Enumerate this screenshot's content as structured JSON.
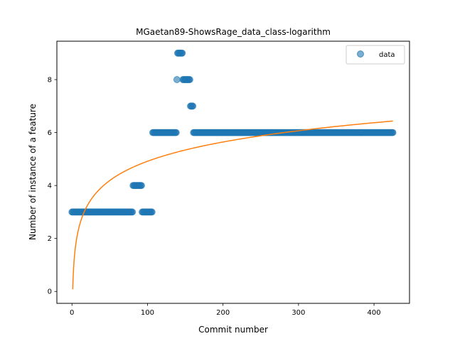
{
  "chart_data": {
    "type": "scatter",
    "title": "MGaetan89-ShowsRage_data_class-logarithm",
    "xlabel": "Commit number",
    "ylabel": "Number of instance of a feature",
    "xlim": [
      -20,
      447
    ],
    "ylim": [
      -0.45,
      9.45
    ],
    "xticks": [
      0,
      100,
      200,
      300,
      400
    ],
    "yticks": [
      0,
      2,
      4,
      6,
      8
    ],
    "grid": false,
    "legend": {
      "placement": "top-right",
      "entries": [
        "data"
      ]
    },
    "colors": {
      "data": "#1f77b4",
      "fit": "#ff7f0e"
    },
    "series": [
      {
        "name": "data",
        "kind": "scatter",
        "segments": [
          {
            "x_start": 0,
            "x_end": 80,
            "y": 3
          },
          {
            "x_start": 81,
            "x_end": 92,
            "y": 4
          },
          {
            "x_start": 93,
            "x_end": 106,
            "y": 3
          },
          {
            "x_start": 107,
            "x_end": 138,
            "y": 6
          },
          {
            "x_start": 139,
            "x_end": 139,
            "y": 8
          },
          {
            "x_start": 140,
            "x_end": 146,
            "y": 9
          },
          {
            "x_start": 147,
            "x_end": 156,
            "y": 8
          },
          {
            "x_start": 157,
            "x_end": 160,
            "y": 7
          },
          {
            "x_start": 161,
            "x_end": 425,
            "y": 6
          }
        ]
      },
      {
        "kind": "line",
        "model": "y = a + b*ln(x)",
        "a": 0.08,
        "b": 1.05,
        "x_range": [
          1,
          425
        ]
      }
    ]
  }
}
